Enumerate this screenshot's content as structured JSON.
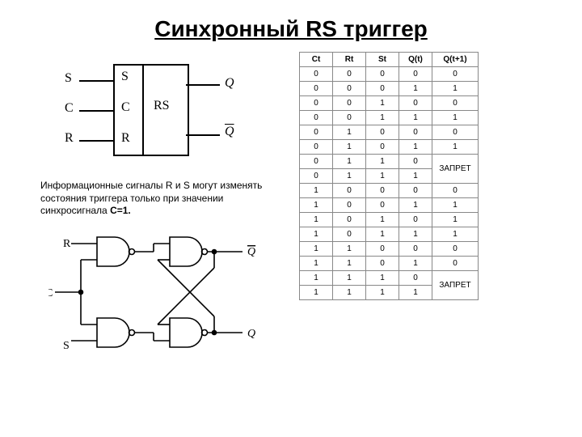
{
  "title": "Синхронный RS триггер",
  "block": {
    "inputs": [
      "S",
      "C",
      "R"
    ],
    "pinLabels": [
      "S",
      "C",
      "R"
    ],
    "typeLabel": "RS",
    "outputs": [
      "Q",
      "Q̄"
    ]
  },
  "description": {
    "text_pre": "Информационные сигналы R и S могут изменять состояния триггера только при значении синхросигнала ",
    "bold": "С=1."
  },
  "gates": {
    "inputs": [
      "R",
      "C",
      "S"
    ],
    "outputs": [
      "Q̄",
      "Q"
    ]
  },
  "truthTable": {
    "headers": [
      "Ct",
      "Rt",
      "St",
      "Q(t)",
      "Q(t+1)"
    ],
    "rows": [
      [
        "0",
        "0",
        "0",
        "0",
        "0"
      ],
      [
        "0",
        "0",
        "0",
        "1",
        "1"
      ],
      [
        "0",
        "0",
        "1",
        "0",
        "0"
      ],
      [
        "0",
        "0",
        "1",
        "1",
        "1"
      ],
      [
        "0",
        "1",
        "0",
        "0",
        "0"
      ],
      [
        "0",
        "1",
        "0",
        "1",
        "1"
      ],
      [
        "0",
        "1",
        "1",
        "0",
        "__FORBID__"
      ],
      [
        "0",
        "1",
        "1",
        "1",
        "__FORBID__"
      ],
      [
        "1",
        "0",
        "0",
        "0",
        "0"
      ],
      [
        "1",
        "0",
        "0",
        "1",
        "1"
      ],
      [
        "1",
        "0",
        "1",
        "0",
        "1"
      ],
      [
        "1",
        "0",
        "1",
        "1",
        "1"
      ],
      [
        "1",
        "1",
        "0",
        "0",
        "0"
      ],
      [
        "1",
        "1",
        "0",
        "1",
        "0"
      ],
      [
        "1",
        "1",
        "1",
        "0",
        "__FORBID__"
      ],
      [
        "1",
        "1",
        "1",
        "1",
        "__FORBID__"
      ]
    ],
    "forbidLabel": "ЗАПРЕТ",
    "colors": {
      "border": "#888888",
      "text": "#000000"
    }
  }
}
